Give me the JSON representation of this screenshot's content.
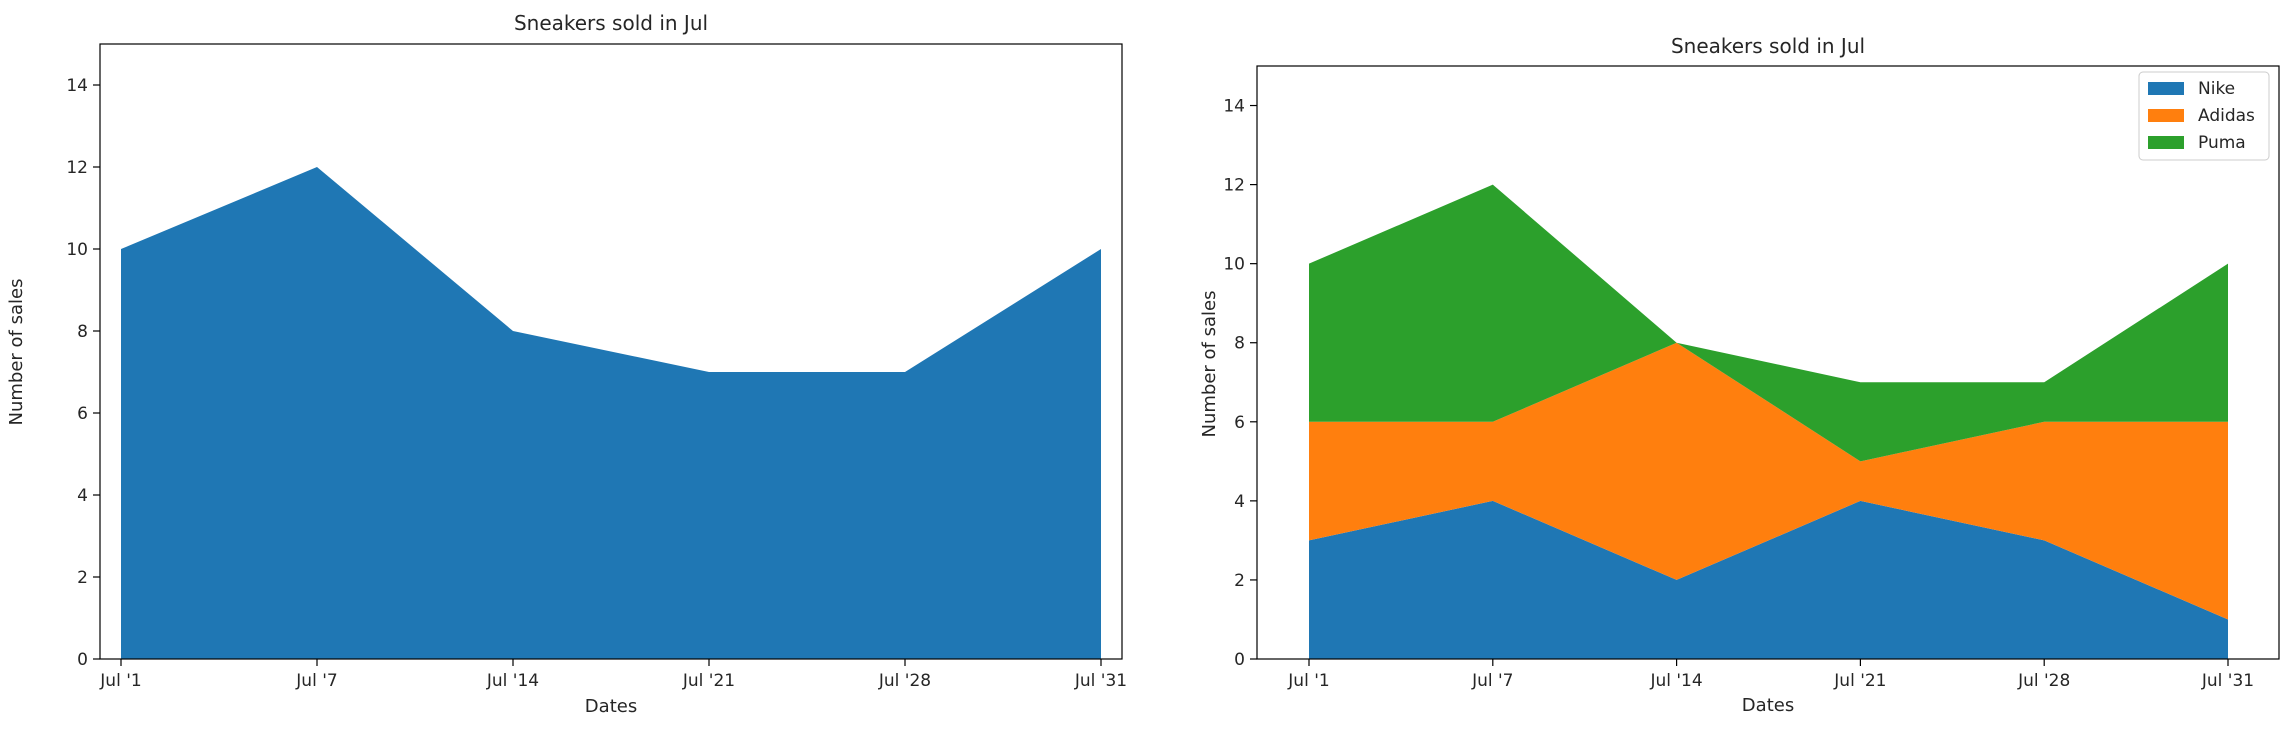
{
  "chart_data": [
    {
      "type": "area",
      "title": "Sneakers sold in Jul",
      "xlabel": "Dates",
      "ylabel": "Number of sales",
      "categories": [
        "Jul '1",
        "Jul '7",
        "Jul '14",
        "Jul '21",
        "Jul '28",
        "Jul '31"
      ],
      "ylim": [
        0,
        15
      ],
      "yticks": [
        0,
        2,
        4,
        6,
        8,
        10,
        12,
        14
      ],
      "grid": false,
      "series": [
        {
          "values": [
            10,
            12,
            8,
            7,
            7,
            10
          ],
          "color": "#1f77b4"
        }
      ]
    },
    {
      "type": "area",
      "stacked": true,
      "title": "Sneakers sold in Jul",
      "xlabel": "Dates",
      "ylabel": "Number of sales",
      "categories": [
        "Jul '1",
        "Jul '7",
        "Jul '14",
        "Jul '21",
        "Jul '28",
        "Jul '31"
      ],
      "ylim": [
        0,
        15
      ],
      "yticks": [
        0,
        2,
        4,
        6,
        8,
        10,
        12,
        14
      ],
      "grid": false,
      "legend": "top-right",
      "series": [
        {
          "name": "Nike",
          "values": [
            3,
            4,
            2,
            4,
            3,
            1
          ],
          "color": "#1f77b4"
        },
        {
          "name": "Adidas",
          "values": [
            3,
            2,
            6,
            1,
            3,
            5
          ],
          "color": "#ff7f0e"
        },
        {
          "name": "Puma",
          "values": [
            4,
            6,
            0,
            2,
            1,
            4
          ],
          "color": "#2ca02c"
        }
      ]
    }
  ]
}
